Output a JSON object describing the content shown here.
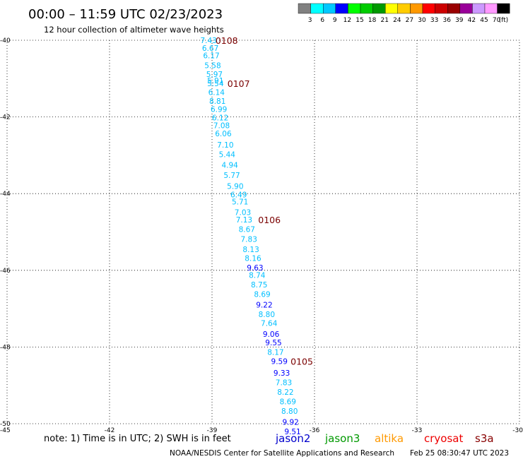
{
  "title": "00:00 – 11:59 UTC 02/23/2023",
  "subtitle": "12 hour collection of altimeter wave heights",
  "legend": {
    "colors": [
      "#808080",
      "#00ffff",
      "#00c8ff",
      "#0000ff",
      "#00ff00",
      "#00cc00",
      "#009900",
      "#ffff00",
      "#ffcc00",
      "#ff9900",
      "#ff0000",
      "#cc0000",
      "#990000",
      "#990099",
      "#cc99ff",
      "#ff99ff",
      "#000000"
    ],
    "labels": [
      "3",
      "6",
      "9",
      "12",
      "15",
      "18",
      "21",
      "24",
      "27",
      "30",
      "33",
      "36",
      "39",
      "42",
      "45",
      "70",
      "(ft)"
    ]
  },
  "axes": {
    "lat_labels": [
      "-40",
      "-42",
      "-44",
      "-46",
      "-48",
      "-50"
    ],
    "lon_labels": [
      "-45",
      "-42",
      "-39",
      "-36",
      "-33",
      "-30"
    ]
  },
  "chart_data": {
    "type": "scatter",
    "x_axis": "longitude",
    "y_axis": "latitude",
    "xlim": [
      -45,
      -30
    ],
    "ylim": [
      -50,
      -40
    ],
    "swh_points": [
      {
        "lon": -39.1,
        "lat": -40.0,
        "v": "7.43",
        "c": "#00bfff"
      },
      {
        "lon": -39.05,
        "lat": -40.2,
        "v": "6.67",
        "c": "#00bfff"
      },
      {
        "lon": -39.02,
        "lat": -40.4,
        "v": "6.17",
        "c": "#00bfff"
      },
      {
        "lon": -38.98,
        "lat": -40.65,
        "v": "5.58",
        "c": "#00bfff"
      },
      {
        "lon": -38.93,
        "lat": -40.88,
        "v": "5.97",
        "c": "#00bfff"
      },
      {
        "lon": -38.9,
        "lat": -41.05,
        "v": "5.91",
        "c": "#00bfff"
      },
      {
        "lon": -38.9,
        "lat": -41.12,
        "v": "5.54",
        "c": "#00bfff"
      },
      {
        "lon": -38.87,
        "lat": -41.35,
        "v": "6.14",
        "c": "#00bfff"
      },
      {
        "lon": -38.84,
        "lat": -41.58,
        "v": "8.81",
        "c": "#00bfff"
      },
      {
        "lon": -38.8,
        "lat": -41.8,
        "v": "6.99",
        "c": "#00bfff"
      },
      {
        "lon": -38.76,
        "lat": -42.02,
        "v": "6.12",
        "c": "#00bfff"
      },
      {
        "lon": -38.72,
        "lat": -42.22,
        "v": "7.08",
        "c": "#00bfff"
      },
      {
        "lon": -38.67,
        "lat": -42.43,
        "v": "6.06",
        "c": "#00bfff"
      },
      {
        "lon": -38.61,
        "lat": -42.73,
        "v": "7.10",
        "c": "#00bfff"
      },
      {
        "lon": -38.56,
        "lat": -42.97,
        "v": "5.44",
        "c": "#00bfff"
      },
      {
        "lon": -38.48,
        "lat": -43.25,
        "v": "4.94",
        "c": "#00bfff"
      },
      {
        "lon": -38.42,
        "lat": -43.52,
        "v": "5.77",
        "c": "#00bfff"
      },
      {
        "lon": -38.32,
        "lat": -43.8,
        "v": "5.90",
        "c": "#00bfff"
      },
      {
        "lon": -38.22,
        "lat": -44.02,
        "v": "6.49",
        "c": "#00bfff"
      },
      {
        "lon": -38.18,
        "lat": -44.21,
        "v": "5.71",
        "c": "#00bfff"
      },
      {
        "lon": -38.1,
        "lat": -44.48,
        "v": "7.03",
        "c": "#00bfff"
      },
      {
        "lon": -38.06,
        "lat": -44.68,
        "v": "7.13",
        "c": "#00bfff"
      },
      {
        "lon": -37.98,
        "lat": -44.93,
        "v": "8.67",
        "c": "#00bfff"
      },
      {
        "lon": -37.92,
        "lat": -45.18,
        "v": "7.83",
        "c": "#00bfff"
      },
      {
        "lon": -37.86,
        "lat": -45.45,
        "v": "8.13",
        "c": "#00bfff"
      },
      {
        "lon": -37.8,
        "lat": -45.68,
        "v": "8.16",
        "c": "#00bfff"
      },
      {
        "lon": -37.74,
        "lat": -45.93,
        "v": "9.63",
        "c": "#0000ff"
      },
      {
        "lon": -37.68,
        "lat": -46.12,
        "v": "8.74",
        "c": "#00bfff"
      },
      {
        "lon": -37.62,
        "lat": -46.37,
        "v": "8.75",
        "c": "#00bfff"
      },
      {
        "lon": -37.53,
        "lat": -46.62,
        "v": "8.69",
        "c": "#00bfff"
      },
      {
        "lon": -37.47,
        "lat": -46.9,
        "v": "9.22",
        "c": "#0000ff"
      },
      {
        "lon": -37.4,
        "lat": -47.15,
        "v": "8.80",
        "c": "#00bfff"
      },
      {
        "lon": -37.33,
        "lat": -47.38,
        "v": "7.64",
        "c": "#00bfff"
      },
      {
        "lon": -37.27,
        "lat": -47.66,
        "v": "9.06",
        "c": "#0000ff"
      },
      {
        "lon": -37.2,
        "lat": -47.88,
        "v": "9.55",
        "c": "#0000ff"
      },
      {
        "lon": -37.14,
        "lat": -48.13,
        "v": "8.17",
        "c": "#00bfff"
      },
      {
        "lon": -37.03,
        "lat": -48.37,
        "v": "9.59",
        "c": "#0000ff"
      },
      {
        "lon": -36.96,
        "lat": -48.67,
        "v": "9.33",
        "c": "#0000ff"
      },
      {
        "lon": -36.9,
        "lat": -48.92,
        "v": "7.83",
        "c": "#00bfff"
      },
      {
        "lon": -36.85,
        "lat": -49.17,
        "v": "8.22",
        "c": "#00bfff"
      },
      {
        "lon": -36.78,
        "lat": -49.42,
        "v": "8.69",
        "c": "#00bfff"
      },
      {
        "lon": -36.73,
        "lat": -49.67,
        "v": "8.80",
        "c": "#00bfff"
      },
      {
        "lon": -36.7,
        "lat": -49.95,
        "v": "9.92",
        "c": "#0000ff"
      },
      {
        "lon": -36.64,
        "lat": -50.2,
        "v": "9.51",
        "c": "#0000ff"
      }
    ],
    "time_labels": [
      {
        "lon": -38.9,
        "lat": -40.0,
        "text": "0108"
      },
      {
        "lon": -38.55,
        "lat": -41.12,
        "text": "0107"
      },
      {
        "lon": -37.65,
        "lat": -44.68,
        "text": "0106"
      },
      {
        "lon": -36.7,
        "lat": -48.37,
        "text": "0105"
      }
    ]
  },
  "footer": {
    "note": "note: 1) Time is in UTC; 2) SWH is in feet",
    "satellites": [
      {
        "name": "jason2",
        "color": "#0000cc"
      },
      {
        "name": "jason3",
        "color": "#009900"
      },
      {
        "name": "altika",
        "color": "#ff9900"
      },
      {
        "name": "cryosat",
        "color": "#ee0000"
      },
      {
        "name": "s3a",
        "color": "#880000"
      }
    ],
    "credit": "NOAA/NESDIS Center for Satellite Applications and Research",
    "timestamp": "Feb 25 08:30:47 UTC 2023"
  }
}
